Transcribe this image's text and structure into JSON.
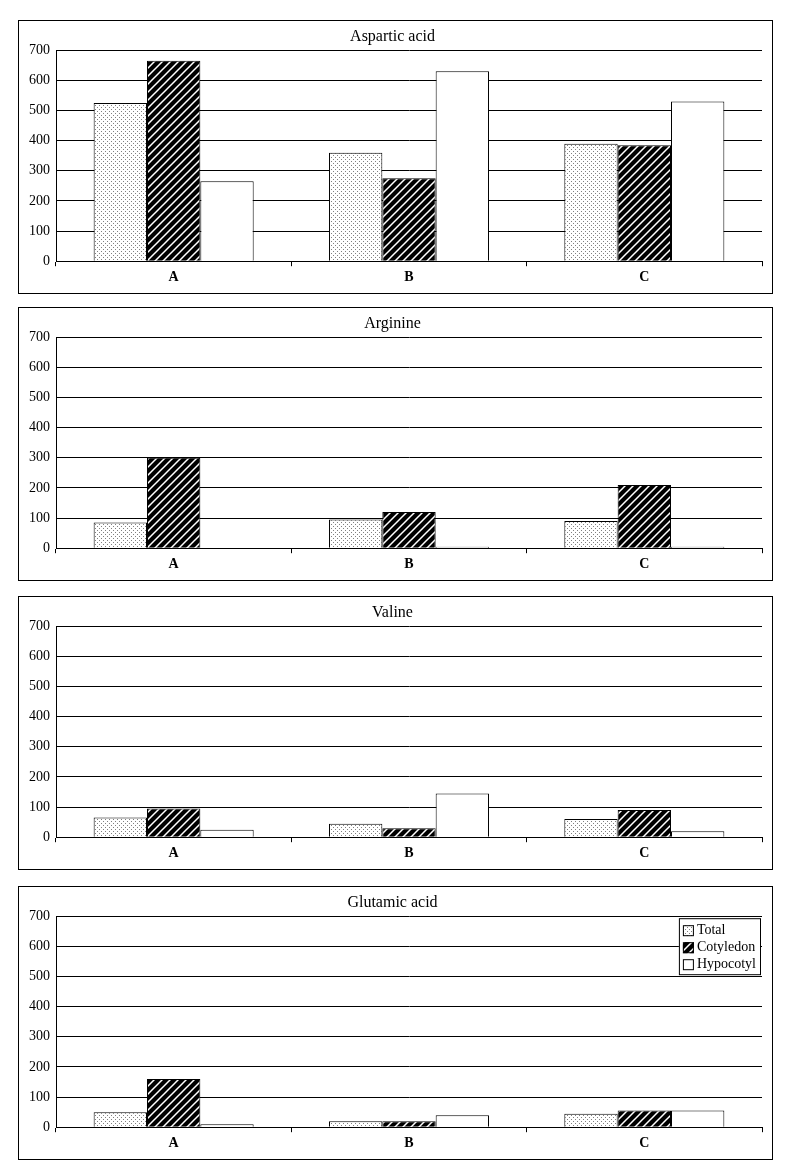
{
  "chart_data": [
    {
      "type": "bar",
      "title": "Aspartic acid",
      "categories": [
        "A",
        "B",
        "C"
      ],
      "series": [
        {
          "name": "Total",
          "color": "#808080",
          "values": [
            525,
            360,
            390
          ]
        },
        {
          "name": "Cotyledon",
          "color": "#000000",
          "values": [
            665,
            275,
            385
          ]
        },
        {
          "name": "Hypocotyl",
          "color": "#ffffff",
          "values": [
            265,
            630,
            530
          ]
        }
      ],
      "ylim": [
        0,
        700
      ],
      "yticks": [
        0,
        100,
        200,
        300,
        400,
        500,
        600,
        700
      ],
      "grid": true
    },
    {
      "type": "bar",
      "title": "Arginine",
      "categories": [
        "A",
        "B",
        "C"
      ],
      "series": [
        {
          "name": "Total",
          "color": "#808080",
          "values": [
            85,
            95,
            90
          ]
        },
        {
          "name": "Cotyledon",
          "color": "#000000",
          "values": [
            300,
            120,
            210
          ]
        },
        {
          "name": "Hypocotyl",
          "color": "#ffffff",
          "values": [
            0,
            5,
            5
          ]
        }
      ],
      "ylim": [
        0,
        700
      ],
      "yticks": [
        0,
        100,
        200,
        300,
        400,
        500,
        600,
        700
      ],
      "grid": true
    },
    {
      "type": "bar",
      "title": "Valine",
      "categories": [
        "A",
        "B",
        "C"
      ],
      "series": [
        {
          "name": "Total",
          "color": "#808080",
          "values": [
            65,
            45,
            60
          ]
        },
        {
          "name": "Cotyledon",
          "color": "#000000",
          "values": [
            95,
            30,
            90
          ]
        },
        {
          "name": "Hypocotyl",
          "color": "#ffffff",
          "values": [
            25,
            145,
            20
          ]
        }
      ],
      "ylim": [
        0,
        700
      ],
      "yticks": [
        0,
        100,
        200,
        300,
        400,
        500,
        600,
        700
      ],
      "grid": true
    },
    {
      "type": "bar",
      "title": "Glutamic acid",
      "categories": [
        "A",
        "B",
        "C"
      ],
      "series": [
        {
          "name": "Total",
          "color": "#808080",
          "values": [
            50,
            20,
            45
          ]
        },
        {
          "name": "Cotyledon",
          "color": "#000000",
          "values": [
            160,
            20,
            55
          ]
        },
        {
          "name": "Hypocotyl",
          "color": "#ffffff",
          "values": [
            10,
            40,
            55
          ]
        }
      ],
      "ylim": [
        0,
        700
      ],
      "yticks": [
        0,
        100,
        200,
        300,
        400,
        500,
        600,
        700
      ],
      "grid": true,
      "legend": "upper right"
    }
  ]
}
